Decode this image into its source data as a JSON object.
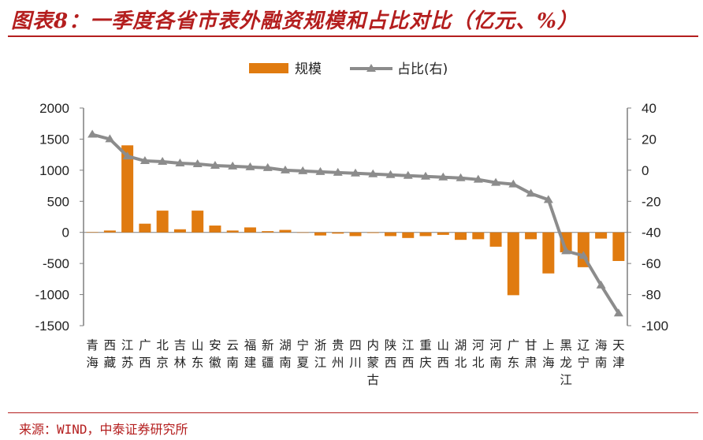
{
  "header": {
    "title": "图表8：一季度各省市表外融资规模和占比对比（亿元、%）"
  },
  "footer": {
    "source": "来源：WIND，中泰证券研究所"
  },
  "colors": {
    "bar": "#e07b10",
    "line": "#8c8c8c",
    "accent": "#b41e1e"
  },
  "chart_data": {
    "type": "bar",
    "categories": [
      "青海",
      "西藏",
      "江苏",
      "广西",
      "北京",
      "吉林",
      "山东",
      "安徽",
      "云南",
      "福建",
      "新疆",
      "湖南",
      "宁夏",
      "浙江",
      "贵州",
      "四川",
      "内蒙古",
      "陕西",
      "江西",
      "重庆",
      "山西",
      "湖北",
      "河北",
      "河南",
      "广东",
      "甘肃",
      "上海",
      "黑龙江",
      "辽宁",
      "海南",
      "天津"
    ],
    "series": [
      {
        "name": "规模",
        "type": "bar",
        "axis": "left",
        "values": [
          5,
          30,
          1400,
          140,
          350,
          50,
          350,
          110,
          30,
          80,
          20,
          40,
          0,
          -50,
          -20,
          -60,
          -10,
          -60,
          -90,
          -60,
          -40,
          -120,
          -110,
          -230,
          -1010,
          -110,
          -660,
          -320,
          -560,
          -100,
          -460
        ]
      },
      {
        "name": "占比(右)",
        "type": "line",
        "axis": "right",
        "values": [
          23,
          20,
          9,
          6,
          5.5,
          4.5,
          4,
          3,
          2.5,
          2,
          1.5,
          0,
          -0.5,
          -1,
          -1.5,
          -2,
          -2.5,
          -3,
          -3.5,
          -4,
          -4.5,
          -5,
          -6,
          -8,
          -9,
          -15,
          -19,
          -52,
          -55,
          -74,
          -92
        ]
      }
    ],
    "y_left": {
      "ylim": [
        -1500,
        2000
      ],
      "ticks": [
        "2000",
        "1500",
        "1000",
        "500",
        "0",
        "-500",
        "-1000",
        "-1500"
      ]
    },
    "y_right": {
      "ylim": [
        -100,
        40
      ],
      "ticks": [
        "40",
        "20",
        "0",
        "-20",
        "-40",
        "-60",
        "-80",
        "-100"
      ]
    },
    "legend": {
      "placement": "top",
      "items": [
        "规模",
        "占比(右)"
      ]
    },
    "grid": false
  }
}
